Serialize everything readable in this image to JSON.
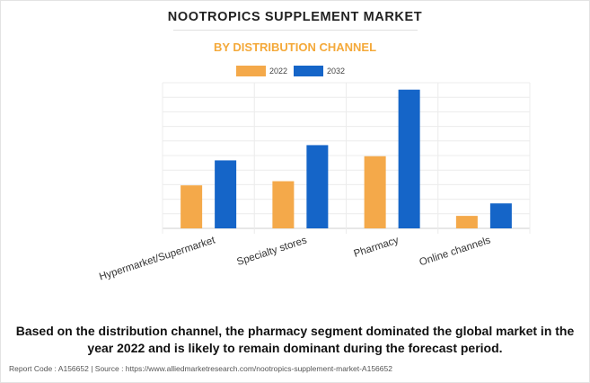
{
  "header": {
    "title": "NOOTROPICS SUPPLEMENT MARKET",
    "subtitle": "BY DISTRIBUTION CHANNEL"
  },
  "legend": [
    {
      "label": "2022",
      "color": "#f4a94a"
    },
    {
      "label": "2032",
      "color": "#1565c8"
    }
  ],
  "chart_data": {
    "type": "bar",
    "title": "NOOTROPICS SUPPLEMENT MARKET",
    "subtitle": "BY DISTRIBUTION CHANNEL",
    "categories": [
      "Hypermarket/Supermarket",
      "Specialty stores",
      "Pharmacy",
      "Online channels"
    ],
    "series": [
      {
        "name": "2022",
        "color": "#f4a94a",
        "values": [
          3.1,
          3.4,
          5.2,
          0.9
        ]
      },
      {
        "name": "2032",
        "color": "#1565c8",
        "values": [
          4.9,
          6.0,
          10.0,
          1.8
        ]
      }
    ],
    "xlabel": "",
    "ylabel": "",
    "ylim": [
      0,
      10.5
    ],
    "y_tick_labels_shown": false,
    "grid": true,
    "legend_position": "top-center"
  },
  "caption": "Based on the distribution channel, the pharmacy segment dominated the global market in the year 2022 and is likely to remain dominant during the forecast period.",
  "footer": "Report Code : A156652  |  Source : https://www.alliedmarketresearch.com/nootropics-supplement-market-A156652"
}
